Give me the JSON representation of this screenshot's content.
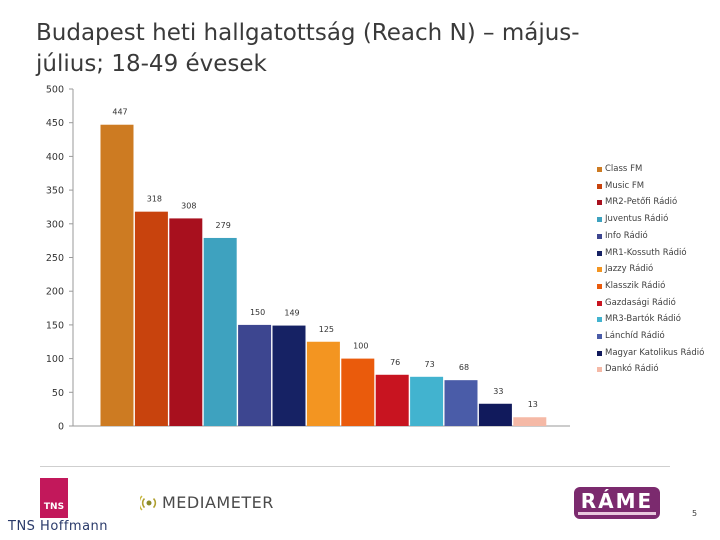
{
  "title_line1": "Budapest heti hallgatottság (Reach N) – május-",
  "title_line2": "július; 18-49 évesek",
  "chart_data": {
    "type": "bar",
    "title": "Budapest heti hallgatottság (Reach N) – május-július; 18-49 évesek",
    "categories": [
      "Class FM",
      "Music FM",
      "MR2-Petőfi Rádió",
      "Juventus Rádió",
      "Info Rádió",
      "MR1-Kossuth Rádió",
      "Jazzy Rádió",
      "Klasszik Rádió",
      "Gazdasági Rádió",
      "MR3-Bartók Rádió",
      "Lánchíd Rádió",
      "Magyar Katolikus Rádió",
      "Dankó Rádió"
    ],
    "values": [
      447,
      318,
      308,
      279,
      150,
      149,
      125,
      100,
      76,
      73,
      68,
      33,
      13
    ],
    "colors": [
      "#cd7b22",
      "#c8430d",
      "#a8101e",
      "#3ea2bf",
      "#3d4690",
      "#162264",
      "#f39521",
      "#ea5b0c",
      "#c81420",
      "#42b3cf",
      "#4a5ca8",
      "#111a5c",
      "#f5b9a6"
    ],
    "ylim": [
      0,
      500
    ],
    "yticks": [
      0,
      50,
      100,
      150,
      200,
      250,
      300,
      350,
      400,
      450,
      500
    ],
    "legend_position": "right",
    "grid": false
  },
  "logos": {
    "tns": "TNS",
    "tns_hoffmann": "TNS Hoffmann",
    "mediameter": "MEDIAMETER",
    "rame": "RÁME"
  },
  "page_number": "5"
}
